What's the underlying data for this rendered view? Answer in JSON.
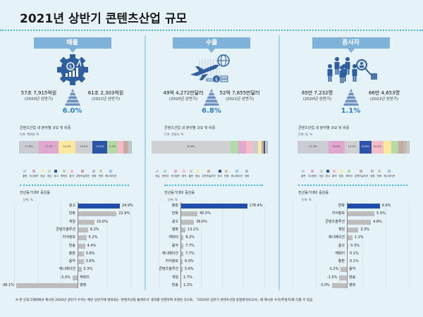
{
  "title": "2021년 상반기 콘텐츠산업 규모",
  "stack_title": "콘텐츠산업 내 분야별 규모 및 비중",
  "change_title": "전년동기대비 증감률",
  "sections": [
    {
      "label": "매출",
      "icon": "gear-money-growth-icon",
      "prev": "57조 7,915억원",
      "prev_period": "(2020년 상반기)",
      "curr": "61조 2,303억원",
      "curr_period": "(2021년 상반기)",
      "change": "6.0%",
      "stack_unit": "단위: 백만원, %",
      "segments": [
        [
          "출판",
          "17.6%"
        ],
        [
          "지식정보",
          "17.7%"
        ],
        [
          "방송",
          "14.4%"
        ],
        [
          "게임",
          "15.6%"
        ],
        [
          "광고",
          "13.0%"
        ],
        [
          "캐릭터",
          "9.4%"
        ],
        [
          "음악",
          "5.0%"
        ],
        [
          "콘텐츠솔루션",
          "3.5%"
        ],
        [
          "영화",
          "1.2%"
        ],
        [
          "만화",
          "1.6%"
        ],
        [
          "애니메이션",
          "1.0%"
        ]
      ],
      "change_unit": "단위: %",
      "bars": [
        [
          "광고",
          24.9,
          "24.9%"
        ],
        [
          "만화",
          22.9,
          "22.9%"
        ],
        [
          "게임",
          10.0,
          "10.0%"
        ],
        [
          "콘텐츠솔루션",
          6.2,
          "6.2%"
        ],
        [
          "지식정보",
          5.2,
          "5.2%"
        ],
        [
          "방송",
          4.4,
          "4.4%"
        ],
        [
          "출판",
          3.6,
          "3.6%"
        ],
        [
          "음악",
          3.6,
          "3.6%"
        ],
        [
          "애니메이션",
          2.3,
          "2.3%"
        ],
        [
          "캐릭터",
          -3.0,
          "-3.0%"
        ],
        [
          "영화",
          -36.1,
          "-36.1%"
        ]
      ]
    },
    {
      "label": "수출",
      "icon": "airplane-globe-coins-icon",
      "prev": "49억 4,272만달러",
      "prev_period": "(2020년 상반기)",
      "curr": "52억 7,855만달러",
      "curr_period": "(2021년 상반기)",
      "change": "6.8%",
      "stack_unit": "단위: 천달러, %",
      "segments": [
        [
          "게임",
          "67.8%"
        ],
        [
          "캐릭터",
          "6.9%"
        ],
        [
          "지식정보",
          "6.6%"
        ],
        [
          "음악",
          "5.8%"
        ],
        [
          "출판",
          "4.5%"
        ],
        [
          "방송",
          "2.9%"
        ],
        [
          "콘텐츠솔루션",
          "2.0%"
        ],
        [
          "광고",
          "1.2%"
        ],
        [
          "만화",
          "1.0%"
        ],
        [
          "애니메이션",
          "0.8%"
        ],
        [
          "영화",
          "0.5%"
        ]
      ],
      "change_unit": "단위: %",
      "bars": [
        [
          "출판",
          178.4,
          "178.4%"
        ],
        [
          "만화",
          45.5,
          "45.5%"
        ],
        [
          "광고",
          36.0,
          "36.0%"
        ],
        [
          "영화",
          13.1,
          "13.1%"
        ],
        [
          "캐릭터",
          8.2,
          "8.2%"
        ],
        [
          "음악",
          7.7,
          "7.7%"
        ],
        [
          "애니메이션",
          7.7,
          "7.7%"
        ],
        [
          "지식정보",
          6.0,
          "6.0%"
        ],
        [
          "콘텐츠솔루션",
          5.6,
          "5.6%"
        ],
        [
          "게임",
          1.7,
          "1.7%"
        ],
        [
          "방송",
          1.2,
          "1.2%"
        ]
      ]
    },
    {
      "label": "종사자",
      "icon": "people-magnifier-icon",
      "prev": "65만 7,232명",
      "prev_period": "(2020년 상반기)",
      "curr": "66만 4,653명",
      "curr_period": "(2021년 상반기)",
      "change": "1.1%",
      "stack_unit": "단위: 명, %",
      "segments": [
        [
          "출판",
          "27.3%"
        ],
        [
          "지식정보",
          "14.4%"
        ],
        [
          "게임",
          "13.1%"
        ],
        [
          "광고",
          "10.8%"
        ],
        [
          "음악",
          "10.4%"
        ],
        [
          "방송",
          "7.3%"
        ],
        [
          "캐릭터",
          "6.0%"
        ],
        [
          "콘텐츠솔루션",
          "4.6%"
        ],
        [
          "영화",
          "3.0%"
        ],
        [
          "만화",
          "1.6%"
        ],
        [
          "애니메이션",
          "0.8%"
        ]
      ],
      "change_unit": "단위: %",
      "bars": [
        [
          "만화",
          6.6,
          "6.6%"
        ],
        [
          "지식정보",
          5.5,
          "5.5%"
        ],
        [
          "콘텐츠솔루션",
          4.8,
          "4.8%"
        ],
        [
          "게임",
          2.3,
          "2.3%"
        ],
        [
          "애니메이션",
          1.1,
          "1.1%"
        ],
        [
          "광고",
          0.3,
          "0.3%"
        ],
        [
          "캐릭터",
          0.1,
          "0.1%"
        ],
        [
          "출판",
          0.1,
          "0.1%"
        ],
        [
          "음악",
          -1.2,
          "-1.2%"
        ],
        [
          "방송",
          -1.5,
          "-1.5%"
        ],
        [
          "영화",
          -3.0,
          "-3.0%"
        ]
      ]
    }
  ],
  "colors": {
    "출판": "#c9ccd3",
    "지식정보": "#e1a8cf",
    "방송": "#fbe9a0",
    "게임": "#cfd0d2",
    "광고": "#2c55a8",
    "캐릭터": "#b6d9a8",
    "음악": "#f4bcc6",
    "콘텐츠솔루션": "#c9a9a0",
    "영화": "#b8bcc2",
    "만화": "#d8c7a8",
    "애니메이션": "#9cc9e3",
    "highlight": "#1f4fa8",
    "bar": "#bdbdbd",
    "accent": "#2a7fc9"
  },
  "footnote": "※ 본 인포그래픽에서 제시된 2020년 상반기 수치는 매년 상반기에 발표되는 '콘텐츠산업 통계조사' 결과를 반영하여 조정된 것으로, 「2020년 상반기 콘텐츠산업 동향분석보고서」에 제시된 수치(추정치)와 다를 수 있음"
}
